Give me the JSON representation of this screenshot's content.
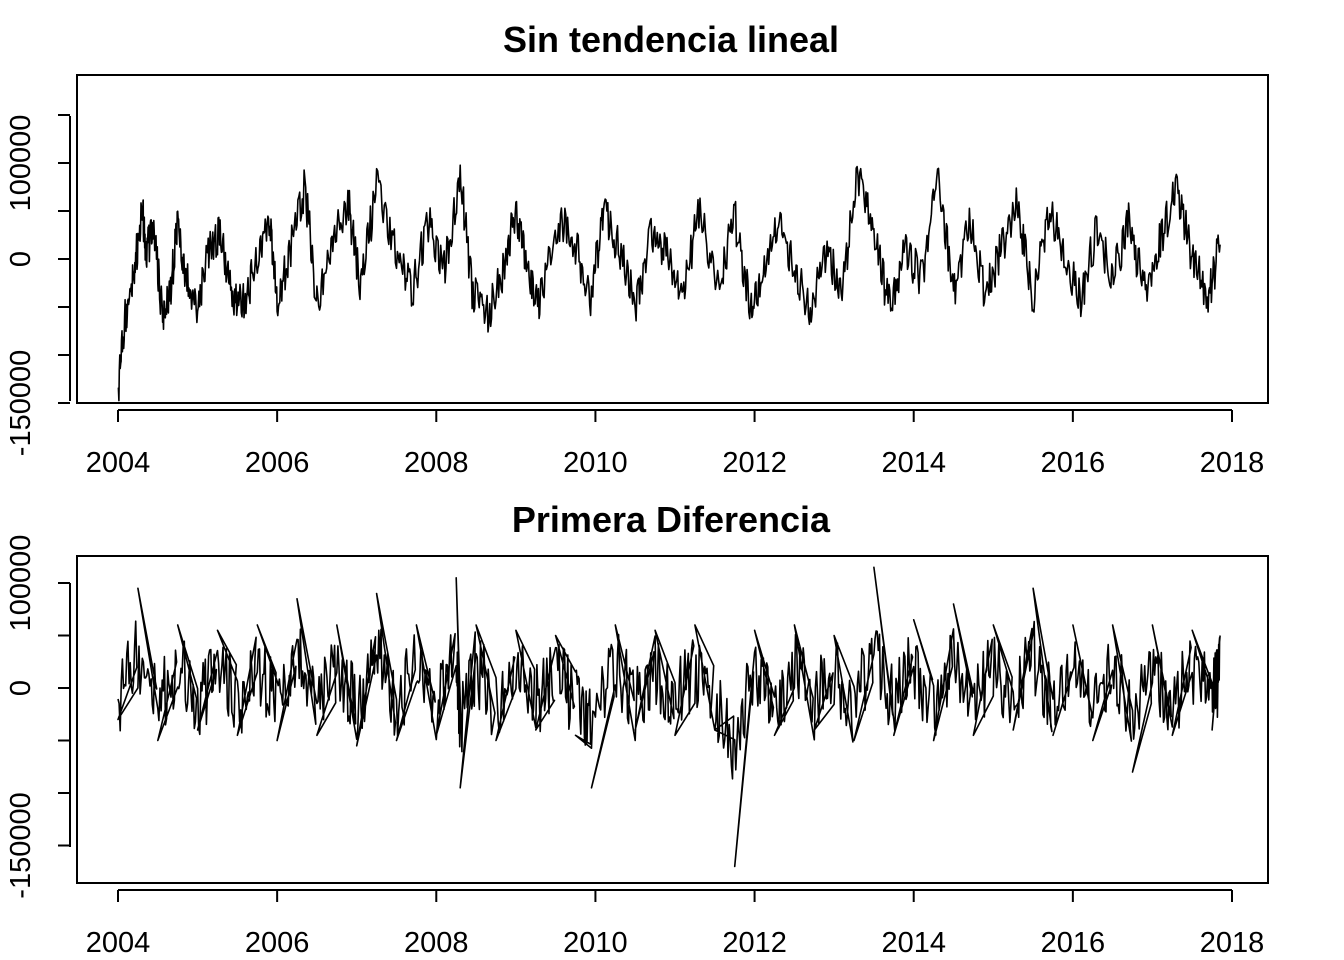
{
  "chart_data": [
    {
      "type": "line",
      "title": "Sin tendencia lineal",
      "xlabel": "",
      "ylabel": "",
      "xlim": [
        2004,
        2018
      ],
      "ylim": [
        -150000,
        150000
      ],
      "x_ticks": [
        2004,
        2006,
        2008,
        2010,
        2012,
        2014,
        2016,
        2018
      ],
      "x_tick_labels": [
        "2004",
        "2006",
        "2008",
        "2010",
        "2012",
        "2014",
        "2016",
        "2018"
      ],
      "y_ticks": [
        -150000,
        -100000,
        -50000,
        0,
        50000,
        100000,
        150000
      ],
      "y_tick_labels": [
        "-150000",
        "",
        "",
        "0",
        "",
        "100000",
        ""
      ],
      "grid": false,
      "series": [
        {
          "x": [
            2004.0,
            2004.1,
            2004.2,
            2004.3,
            2004.35,
            2004.45,
            2004.55,
            2004.65,
            2004.75,
            2004.85,
            2005.0,
            2005.15,
            2005.3,
            2005.45,
            2005.6,
            2005.75,
            2005.9,
            2006.0,
            2006.15,
            2006.35,
            2006.5,
            2006.7,
            2006.9,
            2007.05,
            2007.25,
            2007.5,
            2007.7,
            2007.9,
            2008.1,
            2008.3,
            2008.45,
            2008.65,
            2008.85,
            2009.0,
            2009.15,
            2009.3,
            2009.55,
            2009.75,
            2009.95,
            2010.1,
            2010.3,
            2010.5,
            2010.7,
            2010.9,
            2011.1,
            2011.3,
            2011.55,
            2011.75,
            2011.95,
            2012.1,
            2012.3,
            2012.5,
            2012.7,
            2012.9,
            2013.1,
            2013.3,
            2013.5,
            2013.7,
            2013.9,
            2014.1,
            2014.3,
            2014.5,
            2014.7,
            2014.9,
            2015.1,
            2015.3,
            2015.5,
            2015.7,
            2015.9,
            2016.1,
            2016.3,
            2016.5,
            2016.7,
            2016.9,
            2017.1,
            2017.3,
            2017.5,
            2017.7,
            2017.85
          ],
          "values": [
            -135000,
            -55000,
            -20000,
            55000,
            10000,
            30000,
            -55000,
            -40000,
            35000,
            -20000,
            -55000,
            15000,
            25000,
            -50000,
            -40000,
            -5000,
            45000,
            -45000,
            5000,
            75000,
            -45000,
            20000,
            55000,
            -30000,
            75000,
            5000,
            -35000,
            40000,
            -10000,
            85000,
            -30000,
            -60000,
            -10000,
            50000,
            -10000,
            -45000,
            40000,
            15000,
            -40000,
            55000,
            10000,
            -50000,
            30000,
            5000,
            -40000,
            50000,
            -30000,
            45000,
            -50000,
            -20000,
            40000,
            -10000,
            -55000,
            10000,
            -30000,
            90000,
            20000,
            -50000,
            10000,
            -20000,
            90000,
            -35000,
            35000,
            -35000,
            10000,
            55000,
            -40000,
            50000,
            5000,
            -45000,
            30000,
            -20000,
            40000,
            -35000,
            20000,
            75000,
            0,
            -40000,
            15000
          ]
        }
      ]
    },
    {
      "type": "line",
      "title": "Primera Diferencia",
      "xlabel": "",
      "ylabel": "",
      "xlim": [
        2004,
        2018
      ],
      "ylim": [
        -150000,
        100000
      ],
      "x_ticks": [
        2004,
        2006,
        2008,
        2010,
        2012,
        2014,
        2016,
        2018
      ],
      "x_tick_labels": [
        "2004",
        "2006",
        "2008",
        "2010",
        "2012",
        "2014",
        "2016",
        "2018"
      ],
      "y_ticks": [
        -150000,
        -100000,
        -50000,
        0,
        50000,
        100000
      ],
      "y_tick_labels": [
        "-150000",
        "",
        "",
        "0",
        "",
        "100000"
      ],
      "grid": false,
      "series": [
        {
          "x": [
            2004.0,
            2004.25,
            2004.5,
            2004.75,
            2005.0,
            2005.25,
            2005.5,
            2005.75,
            2006.0,
            2006.25,
            2006.5,
            2006.75,
            2007.0,
            2007.25,
            2007.5,
            2007.75,
            2008.0,
            2008.25,
            2008.3,
            2008.5,
            2008.75,
            2009.0,
            2009.25,
            2009.5,
            2009.75,
            2009.95,
            2010.25,
            2010.5,
            2010.75,
            2011.0,
            2011.25,
            2011.5,
            2011.75,
            2012.0,
            2012.25,
            2012.5,
            2012.75,
            2013.0,
            2013.25,
            2013.5,
            2013.75,
            2014.0,
            2014.25,
            2014.5,
            2014.75,
            2015.0,
            2015.25,
            2015.5,
            2015.75,
            2016.0,
            2016.25,
            2016.5,
            2016.75,
            2017.0,
            2017.25,
            2017.5,
            2017.75,
            2017.85
          ],
          "values": [
            -30000,
            95000,
            -50000,
            60000,
            -40000,
            55000,
            -45000,
            60000,
            -50000,
            85000,
            -45000,
            60000,
            -55000,
            90000,
            -50000,
            60000,
            -45000,
            105000,
            -95000,
            60000,
            -50000,
            55000,
            -40000,
            50000,
            -45000,
            -95000,
            60000,
            -40000,
            55000,
            -45000,
            60000,
            -40000,
            -170000,
            55000,
            -45000,
            60000,
            -40000,
            50000,
            -50000,
            115000,
            -45000,
            65000,
            -50000,
            80000,
            -45000,
            60000,
            -40000,
            95000,
            -45000,
            60000,
            -50000,
            60000,
            -80000,
            60000,
            -45000,
            55000,
            -40000,
            50000
          ]
        }
      ]
    }
  ]
}
